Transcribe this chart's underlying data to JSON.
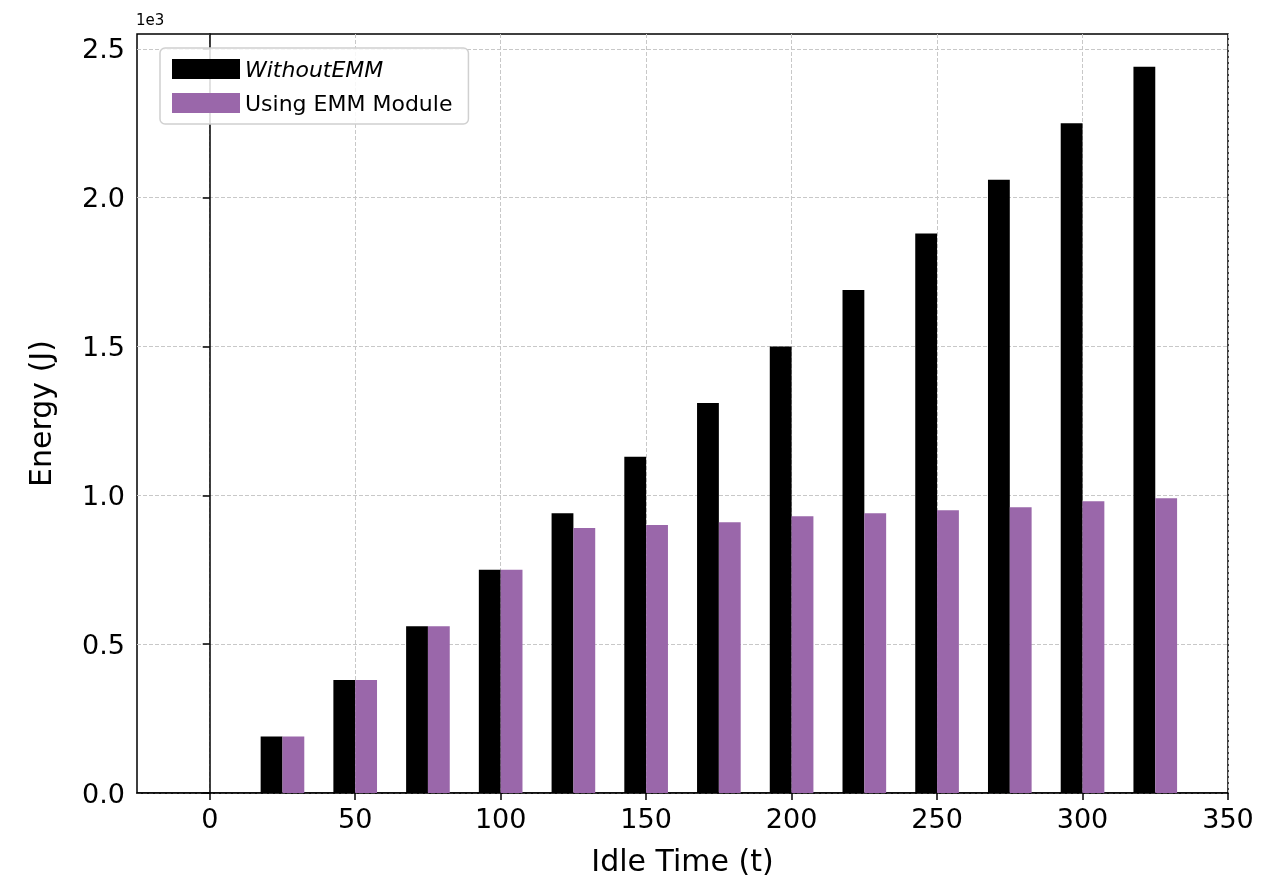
{
  "chart_data": {
    "type": "bar",
    "xlabel": "Idle Time (t)",
    "ylabel": "Energy (J)",
    "annotations": [
      "1e3"
    ],
    "series": [
      {
        "name": "WithoutEMM",
        "color": "#000000",
        "x": [
          21.25,
          46.25,
          71.25,
          96.25,
          121.25,
          146.25,
          171.25,
          196.25,
          221.25,
          246.25,
          271.25,
          296.25,
          321.25
        ],
        "values": [
          0.19,
          0.38,
          0.56,
          0.75,
          0.94,
          1.13,
          1.31,
          1.5,
          1.69,
          1.88,
          2.06,
          2.25,
          2.44
        ]
      },
      {
        "name": "Using EMM Module",
        "color": "#9a67aa",
        "x": [
          28.75,
          53.75,
          78.75,
          103.75,
          128.75,
          153.75,
          178.75,
          203.75,
          228.75,
          253.75,
          278.75,
          303.75,
          328.75
        ],
        "values": [
          0.19,
          0.38,
          0.56,
          0.75,
          0.89,
          0.9,
          0.91,
          0.93,
          0.94,
          0.95,
          0.96,
          0.98,
          0.99
        ]
      }
    ],
    "xlim": [
      -25,
      350
    ],
    "xticks": [
      0,
      50,
      100,
      150,
      200,
      250,
      300,
      350
    ],
    "ylim": [
      0,
      2.55
    ],
    "yticks": [
      {
        "value": 0,
        "label": "0.0"
      },
      {
        "value": 0.5,
        "label": "0.5"
      },
      {
        "value": 1,
        "label": "1.0"
      },
      {
        "value": 1.5,
        "label": "1.5"
      },
      {
        "value": 2,
        "label": "2.0"
      },
      {
        "value": 2.5,
        "label": "2.5"
      }
    ],
    "grid": true,
    "legend": "top left"
  }
}
